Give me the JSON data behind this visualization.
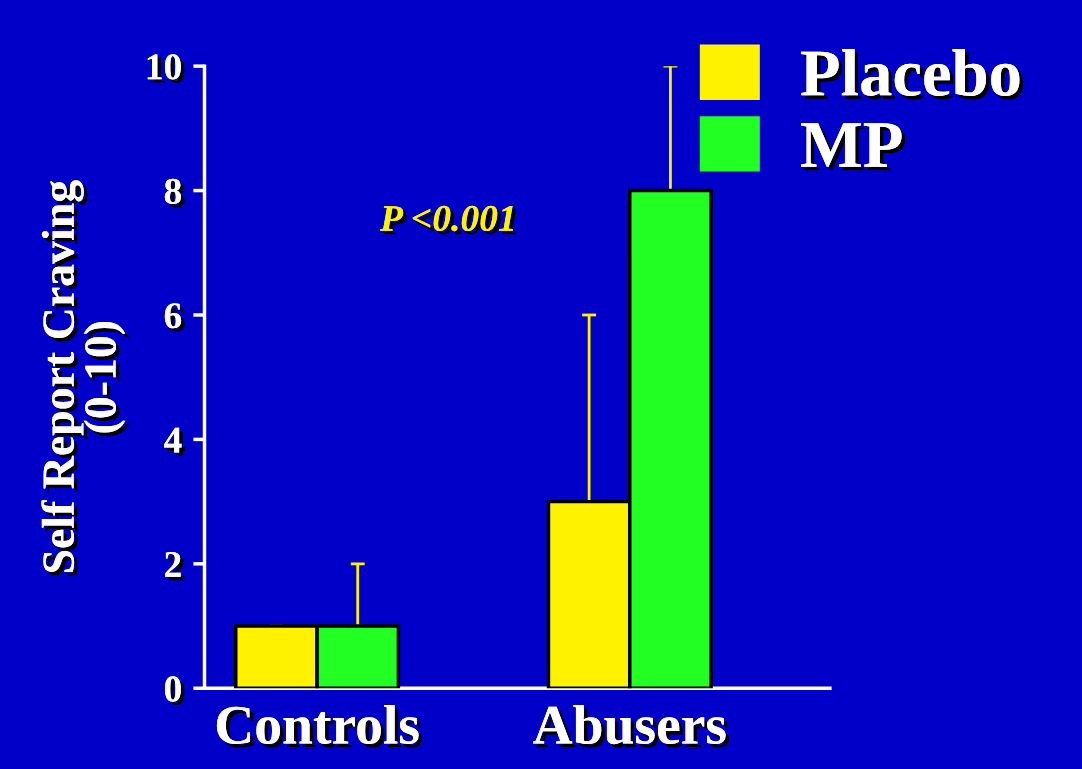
{
  "chart_data": {
    "type": "bar",
    "ylabel": "Self Report Craving\n(0-10)",
    "categories": [
      "Controls",
      "Abusers"
    ],
    "series": [
      {
        "name": "Placebo",
        "color": "#fff200",
        "values": [
          1,
          3
        ],
        "errors": [
          [
            1,
            1
          ],
          [
            3,
            6
          ]
        ]
      },
      {
        "name": "MP",
        "color": "#22ff22",
        "values": [
          1,
          8
        ],
        "errors": [
          [
            1,
            2
          ],
          [
            8,
            10
          ]
        ]
      }
    ],
    "ylim": [
      0,
      10
    ],
    "yticks": [
      0,
      2,
      4,
      6,
      8,
      10
    ],
    "annotations": [
      "P <0.001"
    ],
    "grid": false,
    "legend": "top right"
  }
}
